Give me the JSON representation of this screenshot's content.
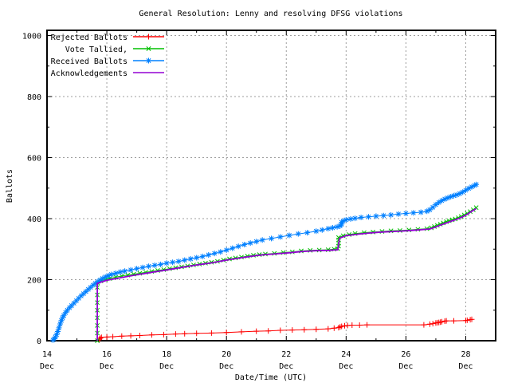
{
  "window": {
    "background": "#ffffff"
  },
  "chart_data": {
    "type": "line",
    "title": "General Resolution: Lenny and resolving DFSG violations",
    "xlabel": "Date/Time (UTC)",
    "ylabel": "Ballots",
    "xlim": [
      14,
      29
    ],
    "ylim": [
      0,
      1000
    ],
    "grid": true,
    "legend_position": "top-left",
    "axis_color": "#000000",
    "grid_color": "#9e9e9e",
    "x_ticks": [
      {
        "value": 14,
        "label": "14",
        "sublabel": "Dec"
      },
      {
        "value": 16,
        "label": "16",
        "sublabel": "Dec"
      },
      {
        "value": 18,
        "label": "18",
        "sublabel": "Dec"
      },
      {
        "value": 20,
        "label": "20",
        "sublabel": "Dec"
      },
      {
        "value": 22,
        "label": "22",
        "sublabel": "Dec"
      },
      {
        "value": 24,
        "label": "24",
        "sublabel": "Dec"
      },
      {
        "value": 26,
        "label": "26",
        "sublabel": "Dec"
      },
      {
        "value": 28,
        "label": "28",
        "sublabel": "Dec"
      }
    ],
    "x_minor_ticks": [
      15,
      17,
      19,
      21,
      23,
      25,
      27
    ],
    "y_ticks": [
      0,
      200,
      400,
      600,
      800,
      1000
    ],
    "y_minor_ticks": [
      100,
      300,
      500,
      700,
      900
    ],
    "series": [
      {
        "name": "Rejected Ballots",
        "color": "#ff0000",
        "marker": "plus",
        "points": [
          [
            15.75,
            5
          ],
          [
            15.78,
            8
          ],
          [
            15.82,
            11
          ],
          [
            16.0,
            12
          ],
          [
            16.2,
            13
          ],
          [
            16.5,
            15
          ],
          [
            16.8,
            16
          ],
          [
            17.1,
            17
          ],
          [
            17.5,
            19
          ],
          [
            17.9,
            20
          ],
          [
            18.3,
            22
          ],
          [
            18.6,
            23
          ],
          [
            19.0,
            24
          ],
          [
            19.5,
            25
          ],
          [
            20.0,
            27
          ],
          [
            20.5,
            29
          ],
          [
            21.0,
            31
          ],
          [
            21.4,
            32
          ],
          [
            21.8,
            34
          ],
          [
            22.2,
            35
          ],
          [
            22.6,
            36
          ],
          [
            23.0,
            37
          ],
          [
            23.4,
            39
          ],
          [
            23.6,
            41
          ],
          [
            23.75,
            43
          ],
          [
            23.8,
            45
          ],
          [
            23.85,
            47
          ],
          [
            23.95,
            49
          ],
          [
            24.05,
            50
          ],
          [
            24.2,
            51
          ],
          [
            24.45,
            51
          ],
          [
            24.7,
            52
          ],
          [
            26.6,
            52
          ],
          [
            26.8,
            54
          ],
          [
            26.9,
            56
          ],
          [
            27.0,
            58
          ],
          [
            27.05,
            59
          ],
          [
            27.1,
            60
          ],
          [
            27.15,
            61
          ],
          [
            27.2,
            62
          ],
          [
            27.3,
            64
          ],
          [
            27.35,
            65
          ],
          [
            27.6,
            65
          ],
          [
            28.0,
            66
          ],
          [
            28.05,
            67
          ],
          [
            28.15,
            69
          ],
          [
            28.2,
            70
          ]
        ]
      },
      {
        "name": "Vote Tallied,",
        "color": "#00c000",
        "marker": "cross",
        "points": [
          [
            15.68,
            0
          ],
          [
            15.68,
            25
          ],
          [
            15.68,
            50
          ],
          [
            15.68,
            75
          ],
          [
            15.68,
            100
          ],
          [
            15.68,
            125
          ],
          [
            15.68,
            150
          ],
          [
            15.68,
            175
          ],
          [
            15.68,
            190
          ],
          [
            15.8,
            196
          ],
          [
            15.95,
            200
          ],
          [
            16.1,
            204
          ],
          [
            16.3,
            208
          ],
          [
            16.5,
            212
          ],
          [
            16.7,
            215
          ],
          [
            16.9,
            218
          ],
          [
            17.1,
            221
          ],
          [
            17.3,
            224
          ],
          [
            17.5,
            227
          ],
          [
            17.7,
            230
          ],
          [
            17.9,
            233
          ],
          [
            18.1,
            236
          ],
          [
            18.3,
            239
          ],
          [
            18.5,
            242
          ],
          [
            18.7,
            245
          ],
          [
            18.9,
            248
          ],
          [
            19.1,
            251
          ],
          [
            19.3,
            254
          ],
          [
            19.5,
            257
          ],
          [
            19.7,
            260
          ],
          [
            19.9,
            264
          ],
          [
            20.1,
            268
          ],
          [
            20.3,
            271
          ],
          [
            20.5,
            274
          ],
          [
            20.7,
            277
          ],
          [
            20.9,
            280
          ],
          [
            21.1,
            282
          ],
          [
            21.3,
            284
          ],
          [
            21.6,
            286
          ],
          [
            21.9,
            289
          ],
          [
            22.2,
            291
          ],
          [
            22.5,
            294
          ],
          [
            22.8,
            296
          ],
          [
            23.1,
            297
          ],
          [
            23.4,
            298
          ],
          [
            23.6,
            300
          ],
          [
            23.72,
            302
          ],
          [
            23.75,
            310
          ],
          [
            23.75,
            320
          ],
          [
            23.75,
            330
          ],
          [
            23.75,
            338
          ],
          [
            23.9,
            344
          ],
          [
            24.1,
            348
          ],
          [
            24.3,
            351
          ],
          [
            24.6,
            354
          ],
          [
            24.9,
            356
          ],
          [
            25.2,
            358
          ],
          [
            25.5,
            360
          ],
          [
            25.8,
            361
          ],
          [
            26.1,
            363
          ],
          [
            26.4,
            365
          ],
          [
            26.7,
            367
          ],
          [
            26.85,
            370
          ],
          [
            26.95,
            374
          ],
          [
            27.05,
            378
          ],
          [
            27.15,
            382
          ],
          [
            27.25,
            386
          ],
          [
            27.35,
            390
          ],
          [
            27.45,
            393
          ],
          [
            27.55,
            396
          ],
          [
            27.65,
            399
          ],
          [
            27.75,
            403
          ],
          [
            27.85,
            407
          ],
          [
            27.95,
            412
          ],
          [
            28.05,
            417
          ],
          [
            28.15,
            423
          ],
          [
            28.25,
            429
          ],
          [
            28.35,
            436
          ]
        ]
      },
      {
        "name": "Received Ballots",
        "color": "#0080ff",
        "marker": "asterisk",
        "points": [
          [
            14.2,
            2
          ],
          [
            14.24,
            6
          ],
          [
            14.28,
            12
          ],
          [
            14.32,
            20
          ],
          [
            14.36,
            30
          ],
          [
            14.4,
            42
          ],
          [
            14.44,
            55
          ],
          [
            14.48,
            66
          ],
          [
            14.52,
            75
          ],
          [
            14.56,
            83
          ],
          [
            14.62,
            92
          ],
          [
            14.68,
            100
          ],
          [
            14.75,
            108
          ],
          [
            14.82,
            115
          ],
          [
            14.9,
            123
          ],
          [
            14.98,
            131
          ],
          [
            15.06,
            139
          ],
          [
            15.14,
            147
          ],
          [
            15.22,
            154
          ],
          [
            15.3,
            161
          ],
          [
            15.38,
            168
          ],
          [
            15.46,
            175
          ],
          [
            15.54,
            182
          ],
          [
            15.62,
            188
          ],
          [
            15.7,
            194
          ],
          [
            15.78,
            199
          ],
          [
            15.86,
            204
          ],
          [
            15.95,
            209
          ],
          [
            16.05,
            213
          ],
          [
            16.15,
            217
          ],
          [
            16.3,
            221
          ],
          [
            16.45,
            225
          ],
          [
            16.6,
            228
          ],
          [
            16.8,
            232
          ],
          [
            17.0,
            236
          ],
          [
            17.2,
            240
          ],
          [
            17.4,
            244
          ],
          [
            17.6,
            247
          ],
          [
            17.8,
            250
          ],
          [
            18.0,
            254
          ],
          [
            18.2,
            257
          ],
          [
            18.4,
            260
          ],
          [
            18.6,
            264
          ],
          [
            18.8,
            268
          ],
          [
            19.0,
            272
          ],
          [
            19.2,
            276
          ],
          [
            19.4,
            281
          ],
          [
            19.6,
            286
          ],
          [
            19.8,
            291
          ],
          [
            20.0,
            297
          ],
          [
            20.2,
            303
          ],
          [
            20.4,
            309
          ],
          [
            20.6,
            315
          ],
          [
            20.8,
            320
          ],
          [
            21.0,
            325
          ],
          [
            21.2,
            330
          ],
          [
            21.5,
            335
          ],
          [
            21.8,
            340
          ],
          [
            22.1,
            345
          ],
          [
            22.4,
            350
          ],
          [
            22.7,
            354
          ],
          [
            23.0,
            359
          ],
          [
            23.2,
            363
          ],
          [
            23.4,
            367
          ],
          [
            23.55,
            370
          ],
          [
            23.7,
            373
          ],
          [
            23.8,
            376
          ],
          [
            23.85,
            382
          ],
          [
            23.85,
            388
          ],
          [
            23.9,
            392
          ],
          [
            24.0,
            396
          ],
          [
            24.15,
            399
          ],
          [
            24.3,
            401
          ],
          [
            24.5,
            404
          ],
          [
            24.75,
            406
          ],
          [
            25.0,
            408
          ],
          [
            25.25,
            410
          ],
          [
            25.5,
            412
          ],
          [
            25.75,
            415
          ],
          [
            26.0,
            417
          ],
          [
            26.25,
            419
          ],
          [
            26.5,
            421
          ],
          [
            26.7,
            424
          ],
          [
            26.8,
            429
          ],
          [
            26.9,
            437
          ],
          [
            27.0,
            446
          ],
          [
            27.1,
            453
          ],
          [
            27.2,
            459
          ],
          [
            27.3,
            464
          ],
          [
            27.4,
            468
          ],
          [
            27.5,
            472
          ],
          [
            27.6,
            475
          ],
          [
            27.7,
            478
          ],
          [
            27.8,
            482
          ],
          [
            27.9,
            487
          ],
          [
            28.0,
            493
          ],
          [
            28.1,
            499
          ],
          [
            28.2,
            504
          ],
          [
            28.3,
            509
          ],
          [
            28.35,
            512
          ]
        ]
      },
      {
        "name": "Acknowledgements",
        "color": "#9400d3",
        "marker": "none",
        "points": [
          [
            15.68,
            0
          ],
          [
            15.68,
            188
          ],
          [
            16.0,
            198
          ],
          [
            16.5,
            207
          ],
          [
            17.0,
            216
          ],
          [
            17.5,
            224
          ],
          [
            18.0,
            232
          ],
          [
            18.5,
            240
          ],
          [
            19.0,
            248
          ],
          [
            19.5,
            255
          ],
          [
            20.0,
            264
          ],
          [
            20.5,
            272
          ],
          [
            21.0,
            279
          ],
          [
            21.3,
            282
          ],
          [
            21.7,
            285
          ],
          [
            22.1,
            288
          ],
          [
            22.5,
            292
          ],
          [
            23.0,
            295
          ],
          [
            23.4,
            296
          ],
          [
            23.72,
            298
          ],
          [
            23.78,
            336
          ],
          [
            24.0,
            344
          ],
          [
            24.4,
            349
          ],
          [
            24.8,
            353
          ],
          [
            25.2,
            356
          ],
          [
            25.6,
            358
          ],
          [
            26.0,
            360
          ],
          [
            26.4,
            363
          ],
          [
            26.8,
            366
          ],
          [
            26.95,
            371
          ],
          [
            27.1,
            377
          ],
          [
            27.3,
            384
          ],
          [
            27.5,
            391
          ],
          [
            27.7,
            398
          ],
          [
            27.9,
            406
          ],
          [
            28.05,
            414
          ],
          [
            28.2,
            424
          ],
          [
            28.35,
            433
          ]
        ]
      }
    ]
  }
}
